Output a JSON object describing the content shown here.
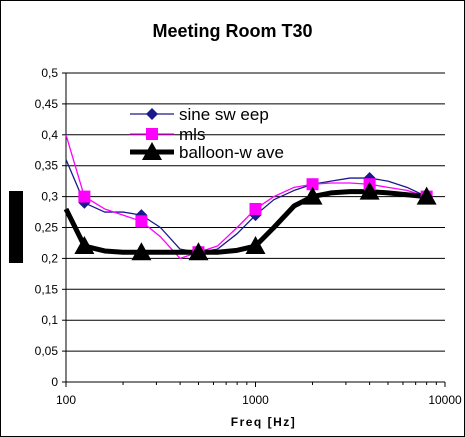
{
  "chart_data": {
    "type": "line",
    "title": "Meeting Room T30",
    "xlabel": "Freq [Hz]",
    "ylabel": "",
    "x_scale": "log",
    "xlim": [
      100,
      10000
    ],
    "ylim": [
      0,
      0.5
    ],
    "x_ticks": [
      100,
      1000,
      10000
    ],
    "x_tick_labels": [
      "100",
      "1000",
      "10000"
    ],
    "y_ticks": [
      0,
      0.05,
      0.1,
      0.15,
      0.2,
      0.25,
      0.3,
      0.35,
      0.4,
      0.45,
      0.5
    ],
    "y_tick_labels": [
      "0",
      "0,05",
      "0,1",
      "0,15",
      "0,2",
      "0,25",
      "0,3",
      "0,35",
      "0,4",
      "0,45",
      "0,5"
    ],
    "grid": "horizontal",
    "legend_position": "upper-right inside plot",
    "series": [
      {
        "name": "sine sw eep",
        "color": "#1a1a8c",
        "marker": "diamond",
        "x": [
          100,
          125,
          160,
          200,
          250,
          315,
          400,
          500,
          630,
          800,
          1000,
          1250,
          1600,
          2000,
          2500,
          3150,
          4000,
          5000,
          6300,
          8000
        ],
        "y": [
          0.36,
          0.29,
          0.275,
          0.275,
          0.27,
          0.25,
          0.215,
          0.21,
          0.215,
          0.24,
          0.27,
          0.295,
          0.31,
          0.32,
          0.325,
          0.33,
          0.33,
          0.325,
          0.315,
          0.3
        ]
      },
      {
        "name": "mls",
        "color": "#ff00ff",
        "marker": "square",
        "x": [
          100,
          125,
          160,
          200,
          250,
          315,
          400,
          500,
          630,
          800,
          1000,
          1250,
          1600,
          2000,
          2500,
          3150,
          4000,
          5000,
          6300,
          8000
        ],
        "y": [
          0.4,
          0.3,
          0.28,
          0.27,
          0.26,
          0.235,
          0.2,
          0.21,
          0.22,
          0.25,
          0.28,
          0.3,
          0.315,
          0.32,
          0.322,
          0.322,
          0.32,
          0.315,
          0.31,
          0.3
        ]
      },
      {
        "name": "balloon-w ave",
        "color": "#000000",
        "marker": "triangle",
        "x": [
          100,
          125,
          160,
          200,
          250,
          315,
          400,
          500,
          630,
          800,
          1000,
          1250,
          1600,
          2000,
          2500,
          3150,
          4000,
          5000,
          6300,
          8000
        ],
        "y": [
          0.28,
          0.22,
          0.212,
          0.21,
          0.21,
          0.21,
          0.21,
          0.21,
          0.21,
          0.213,
          0.22,
          0.25,
          0.285,
          0.3,
          0.306,
          0.308,
          0.308,
          0.306,
          0.303,
          0.3
        ]
      }
    ]
  }
}
